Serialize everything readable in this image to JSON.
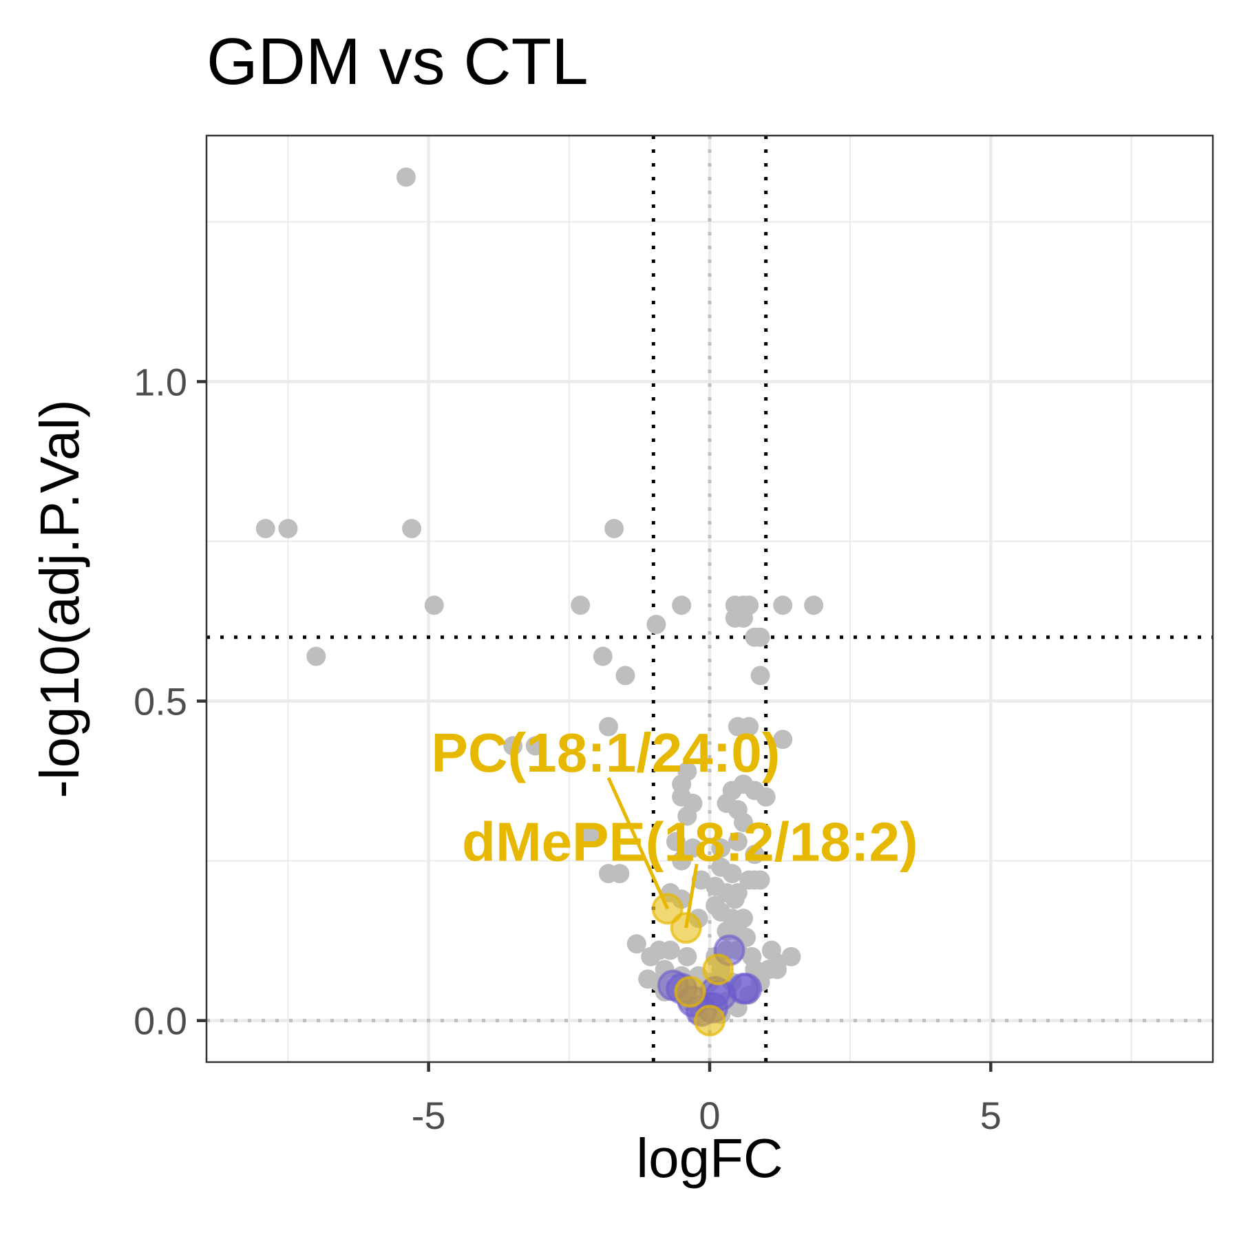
{
  "chart_data": {
    "type": "scatter",
    "title": "GDM vs CTL",
    "xlabel": "logFC",
    "ylabel": "-log10(adj.P.Val)",
    "xlim": [
      -8.95,
      8.95
    ],
    "ylim": [
      -0.065,
      1.385
    ],
    "x_ticks": [
      -5,
      0,
      5
    ],
    "x_tick_labels": [
      "-5",
      "0",
      "5"
    ],
    "y_ticks": [
      0.0,
      0.5,
      1.0
    ],
    "y_tick_labels": [
      "0.0",
      "0.5",
      "1.0"
    ],
    "grid": true,
    "theme": "ggplot2 theme_bw",
    "thresholds": {
      "logFC": [
        -1,
        1
      ],
      "neg_log10_adj_p": 0.6
    },
    "colors": {
      "background_points": "#bebebe",
      "highlight_purple": "#6a5acd",
      "highlight_gold": "#e6b800",
      "threshold_line": "#000000",
      "zero_line": "#bebebe"
    },
    "series": [
      {
        "color": "#bebebe",
        "points": [
          [
            -5.4,
            1.32
          ],
          [
            -7.9,
            0.77
          ],
          [
            -7.5,
            0.77
          ],
          [
            -5.3,
            0.77
          ],
          [
            -1.7,
            0.77
          ],
          [
            -4.9,
            0.65
          ],
          [
            -2.3,
            0.65
          ],
          [
            -0.95,
            0.62
          ],
          [
            -0.5,
            0.65
          ],
          [
            0.45,
            0.65
          ],
          [
            0.6,
            0.65
          ],
          [
            0.7,
            0.65
          ],
          [
            1.3,
            0.65
          ],
          [
            1.85,
            0.65
          ],
          [
            0.45,
            0.63
          ],
          [
            0.6,
            0.63
          ],
          [
            0.8,
            0.6
          ],
          [
            0.9,
            0.6
          ],
          [
            -7.0,
            0.57
          ],
          [
            -1.9,
            0.57
          ],
          [
            -1.5,
            0.54
          ],
          [
            0.9,
            0.54
          ],
          [
            -3.5,
            0.43
          ],
          [
            -3.1,
            0.43
          ],
          [
            -1.8,
            0.46
          ],
          [
            0.5,
            0.46
          ],
          [
            0.7,
            0.46
          ],
          [
            1.3,
            0.44
          ],
          [
            -0.4,
            0.39
          ],
          [
            -0.5,
            0.37
          ],
          [
            0.4,
            0.36
          ],
          [
            0.6,
            0.37
          ],
          [
            0.8,
            0.36
          ],
          [
            1.0,
            0.35
          ],
          [
            -0.5,
            0.35
          ],
          [
            -0.3,
            0.34
          ],
          [
            0.3,
            0.34
          ],
          [
            0.5,
            0.33
          ],
          [
            -0.4,
            0.32
          ],
          [
            0.6,
            0.31
          ],
          [
            -2.2,
            0.29
          ],
          [
            -2.0,
            0.29
          ],
          [
            -0.6,
            0.28
          ],
          [
            -0.3,
            0.27
          ],
          [
            0.2,
            0.27
          ],
          [
            0.5,
            0.28
          ],
          [
            0.8,
            0.26
          ],
          [
            -0.5,
            0.25
          ],
          [
            0.2,
            0.24
          ],
          [
            0.4,
            0.23
          ],
          [
            0.7,
            0.22
          ],
          [
            -1.8,
            0.23
          ],
          [
            -1.6,
            0.23
          ],
          [
            0.1,
            0.21
          ],
          [
            0.3,
            0.2
          ],
          [
            0.5,
            0.2
          ],
          [
            0.8,
            0.22
          ],
          [
            0.9,
            0.22
          ],
          [
            -0.7,
            0.2
          ],
          [
            -0.5,
            0.19
          ],
          [
            0.1,
            0.18
          ],
          [
            0.2,
            0.17
          ],
          [
            0.4,
            0.16
          ],
          [
            0.6,
            0.16
          ],
          [
            -0.2,
            0.16
          ],
          [
            0.3,
            0.14
          ],
          [
            0.5,
            0.14
          ],
          [
            0.65,
            0.13
          ],
          [
            -1.3,
            0.12
          ],
          [
            -0.9,
            0.11
          ],
          [
            -0.7,
            0.11
          ],
          [
            -0.4,
            0.1
          ],
          [
            0.1,
            0.1
          ],
          [
            0.3,
            0.11
          ],
          [
            0.5,
            0.11
          ],
          [
            0.75,
            0.1
          ],
          [
            1.1,
            0.11
          ],
          [
            1.45,
            0.1
          ],
          [
            1.2,
            0.09
          ],
          [
            -0.8,
            0.08
          ],
          [
            -0.5,
            0.07
          ],
          [
            -0.2,
            0.07
          ],
          [
            0.2,
            0.08
          ],
          [
            0.8,
            0.08
          ],
          [
            1.2,
            0.08
          ],
          [
            -1.1,
            0.065
          ],
          [
            -0.9,
            0.06
          ],
          [
            -0.6,
            0.05
          ],
          [
            -0.3,
            0.05
          ],
          [
            0.0,
            0.06
          ],
          [
            0.4,
            0.06
          ],
          [
            0.9,
            0.06
          ],
          [
            -0.8,
            0.045
          ],
          [
            -0.4,
            0.03
          ],
          [
            0.0,
            0.03
          ],
          [
            0.3,
            0.03
          ],
          [
            0.7,
            0.04
          ],
          [
            -0.2,
            0.01
          ],
          [
            0.2,
            0.01
          ],
          [
            0.5,
            0.02
          ],
          [
            1.05,
            0.08
          ],
          [
            -1.05,
            0.1
          ],
          [
            0.45,
            0.19
          ],
          [
            -0.15,
            0.22
          ]
        ]
      },
      {
        "color": "#6a5acd",
        "points": [
          [
            0.35,
            0.11
          ],
          [
            0.6,
            0.05
          ],
          [
            0.65,
            0.05
          ],
          [
            -0.65,
            0.055
          ],
          [
            -0.5,
            0.05
          ],
          [
            -0.3,
            0.03
          ],
          [
            0.05,
            0.02
          ],
          [
            0.2,
            0.04
          ],
          [
            -0.15,
            0.015
          ],
          [
            0.1,
            0.045
          ]
        ]
      },
      {
        "color": "#e6b800",
        "points": [
          [
            -0.75,
            0.175
          ],
          [
            -0.42,
            0.145
          ],
          [
            0.15,
            0.08
          ],
          [
            -0.35,
            0.045
          ],
          [
            0.0,
            0.0
          ]
        ]
      }
    ],
    "annotations": [
      {
        "text": "PC(18:1/24:0)",
        "point": [
          -0.75,
          0.175
        ],
        "label_at": [
          -1.85,
          0.42
        ]
      },
      {
        "text": "dMePE(18:2/18:2)",
        "point": [
          -0.42,
          0.145
        ],
        "label_at": [
          -0.35,
          0.28
        ]
      }
    ]
  }
}
